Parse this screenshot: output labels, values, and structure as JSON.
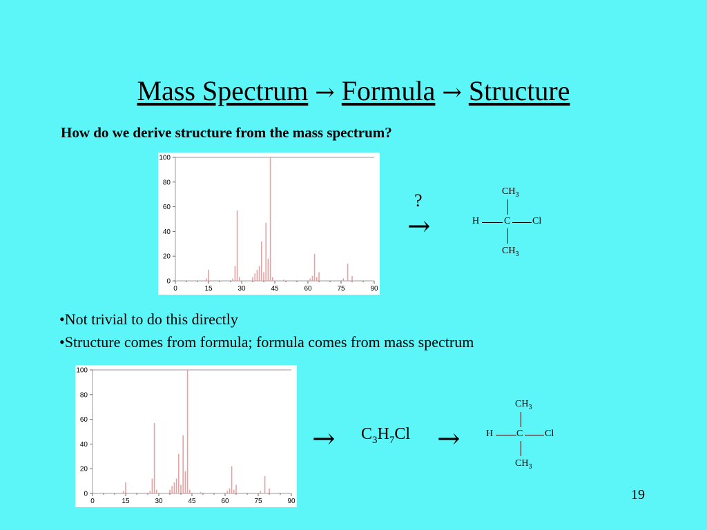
{
  "slide": {
    "title": "Mass Spectrum → Formula → Structure",
    "title_parts": [
      "Mass Spectrum",
      "Formula",
      "Structure"
    ],
    "question": "How do we derive structure from the mass spectrum?",
    "bullets": [
      "•Not trivial to do this directly",
      "•Structure comes from formula; formula comes from mass spectrum"
    ],
    "question_mark": "?",
    "arrow": "→",
    "formula": {
      "c": "C",
      "c_n": "3",
      "h": "H",
      "h_n": "7",
      "cl": "Cl"
    },
    "structure": {
      "top": "CH",
      "top_n": "3",
      "left": "H",
      "center": "C",
      "right": "Cl",
      "bottom": "CH",
      "bottom_n": "3"
    },
    "page_number": "19",
    "background_color": "#5cf5f8"
  },
  "chart_data": [
    {
      "type": "bar",
      "title": "",
      "xlabel": "",
      "ylabel": "",
      "xlim": [
        0,
        90
      ],
      "ylim": [
        0,
        100
      ],
      "xticks": [
        0,
        15,
        30,
        45,
        60,
        75,
        90
      ],
      "yticks": [
        0,
        20,
        40,
        60,
        80,
        100
      ],
      "bar_color": "#e8a0a0",
      "x": [
        14,
        15,
        26,
        27,
        28,
        29,
        35,
        36,
        37,
        38,
        39,
        40,
        41,
        42,
        43,
        44,
        49,
        61,
        62,
        63,
        64,
        65,
        76,
        78,
        80
      ],
      "values": [
        2,
        9,
        2,
        12,
        57,
        3,
        3,
        6,
        9,
        12,
        32,
        7,
        47,
        18,
        100,
        3,
        1,
        2,
        4,
        22,
        3,
        7,
        2,
        14,
        4
      ]
    },
    {
      "type": "bar",
      "title": "",
      "xlabel": "",
      "ylabel": "",
      "xlim": [
        0,
        90
      ],
      "ylim": [
        0,
        100
      ],
      "xticks": [
        0,
        15,
        30,
        45,
        60,
        75,
        90
      ],
      "yticks": [
        0,
        20,
        40,
        60,
        80,
        100
      ],
      "bar_color": "#e8a0a0",
      "x": [
        14,
        15,
        26,
        27,
        28,
        29,
        35,
        36,
        37,
        38,
        39,
        40,
        41,
        42,
        43,
        44,
        49,
        61,
        62,
        63,
        64,
        65,
        76,
        78,
        80
      ],
      "values": [
        2,
        9,
        2,
        12,
        57,
        3,
        3,
        6,
        9,
        12,
        32,
        7,
        47,
        18,
        100,
        3,
        1,
        2,
        4,
        22,
        3,
        7,
        2,
        14,
        4
      ]
    }
  ]
}
